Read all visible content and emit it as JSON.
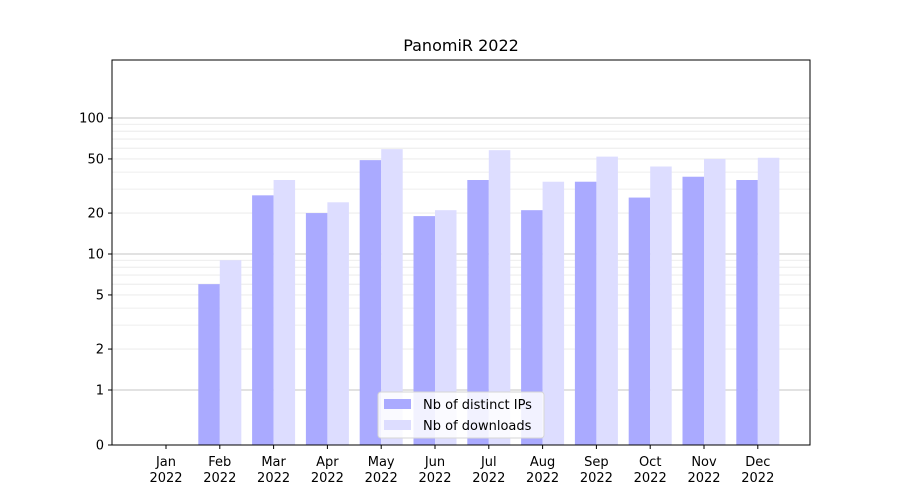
{
  "chart_data": {
    "type": "bar",
    "title": "PanomiR 2022",
    "xlabel": "",
    "ylabel": "",
    "yscale": "symlog",
    "ylim": [
      0,
      120
    ],
    "yticks": [
      0,
      1,
      2,
      5,
      10,
      20,
      50,
      100
    ],
    "grid": true,
    "legend_position": "bottom-center",
    "categories": [
      "Jan\n2022",
      "Feb\n2022",
      "Mar\n2022",
      "Apr\n2022",
      "May\n2022",
      "Jun\n2022",
      "Jul\n2022",
      "Aug\n2022",
      "Sep\n2022",
      "Oct\n2022",
      "Nov\n2022",
      "Dec\n2022"
    ],
    "series": [
      {
        "name": "Nb of distinct IPs",
        "color": "#aaaaff",
        "values": [
          0,
          6,
          27,
          20,
          49,
          19,
          35,
          21,
          34,
          26,
          37,
          35
        ]
      },
      {
        "name": "Nb of downloads",
        "color": "#ddddff",
        "values": [
          0,
          9,
          35,
          24,
          59,
          21,
          58,
          34,
          52,
          44,
          50,
          51
        ]
      }
    ]
  }
}
